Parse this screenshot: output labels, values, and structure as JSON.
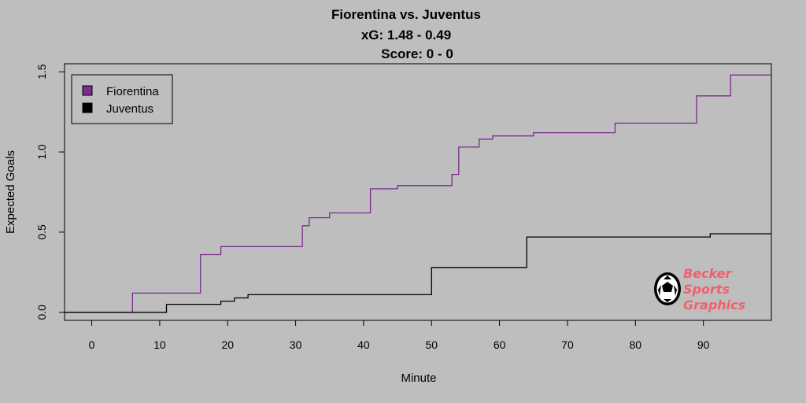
{
  "chart_data": {
    "type": "line",
    "step": true,
    "title": [
      "Fiorentina vs. Juventus",
      "xG: 1.48  - 0.49",
      "Score: 0 - 0"
    ],
    "xlabel": "Minute",
    "ylabel": "Expected Goals",
    "xlim": [
      -4,
      100
    ],
    "ylim": [
      -0.05,
      1.55
    ],
    "x_ticks": [
      0,
      10,
      20,
      30,
      40,
      50,
      60,
      70,
      80,
      90
    ],
    "y_ticks": [
      0.0,
      0.5,
      1.0,
      1.5
    ],
    "y_tick_labels": [
      "0.0",
      "0.5",
      "1.0",
      "1.5"
    ],
    "legend_position": "top-left",
    "series": [
      {
        "name": "Fiorentina",
        "color": "#7b2d8e",
        "x": [
          -4,
          6,
          16,
          19,
          31,
          32,
          35,
          41,
          45,
          53,
          54,
          57,
          59,
          65,
          77,
          89,
          94,
          100
        ],
        "y": [
          0,
          0.12,
          0.36,
          0.41,
          0.54,
          0.59,
          0.62,
          0.77,
          0.79,
          0.86,
          1.03,
          1.08,
          1.1,
          1.12,
          1.18,
          1.35,
          1.48,
          1.48
        ]
      },
      {
        "name": "Juventus",
        "color": "#000000",
        "x": [
          -4,
          11,
          19,
          21,
          23,
          50,
          64,
          91,
          100
        ],
        "y": [
          0,
          0.05,
          0.07,
          0.09,
          0.11,
          0.28,
          0.47,
          0.49,
          0.49
        ]
      }
    ]
  },
  "logo": {
    "lines": [
      "Becker",
      "Sports",
      "Graphics"
    ],
    "color": "#f0616d",
    "icon": "soccer-ball-icon"
  }
}
